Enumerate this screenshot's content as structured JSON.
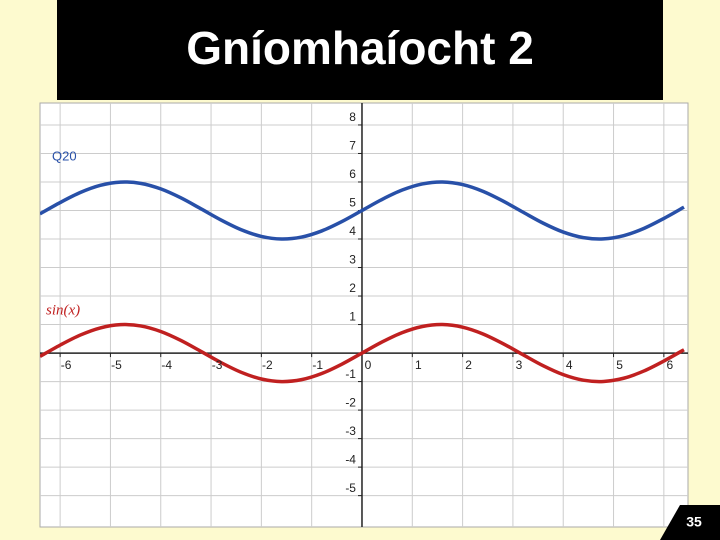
{
  "title": "Gníomhaíocht 2",
  "page_number": "35",
  "chart_data": {
    "type": "line",
    "x": [
      -6.4,
      -6.0,
      -5.6,
      -5.2,
      -4.8,
      -4.4,
      -4.0,
      -3.6,
      -3.2,
      -2.8,
      -2.4,
      -2.0,
      -1.6,
      -1.2,
      -0.8,
      -0.4,
      0,
      0.4,
      0.8,
      1.2,
      1.6,
      2.0,
      2.4,
      2.8,
      3.2,
      3.6,
      4.0,
      4.4,
      4.8,
      5.2,
      5.6,
      6.0,
      6.4
    ],
    "series": [
      {
        "name": "Q20",
        "color": "#2850a8",
        "values": [
          4.883,
          5.279,
          5.631,
          5.883,
          5.996,
          5.952,
          5.757,
          5.443,
          5.058,
          4.665,
          4.325,
          4.091,
          4.0,
          4.068,
          4.283,
          4.611,
          5,
          5.389,
          5.717,
          5.932,
          6.0,
          5.909,
          5.675,
          5.335,
          4.942,
          4.557,
          4.243,
          4.048,
          4.004,
          4.117,
          4.369,
          4.721,
          5.117
        ]
      },
      {
        "name": "sin(x)",
        "color": "#c02020",
        "values": [
          -0.117,
          0.279,
          0.631,
          0.883,
          0.996,
          0.952,
          0.757,
          0.443,
          0.058,
          -0.335,
          -0.675,
          -0.909,
          -1.0,
          -0.932,
          -0.717,
          -0.389,
          0,
          0.389,
          0.717,
          0.932,
          1.0,
          0.909,
          0.675,
          0.335,
          -0.058,
          -0.443,
          -0.757,
          -0.952,
          -0.996,
          -0.883,
          -0.631,
          -0.279,
          0.117
        ]
      }
    ],
    "xlim": [
      -6.4,
      6.48
    ],
    "ylim": [
      -6.1,
      8.77
    ],
    "xticks": [
      -6,
      -5,
      -4,
      -3,
      -2,
      -1,
      0,
      1,
      2,
      3,
      4,
      5,
      6
    ],
    "yticks": [
      -5,
      -4,
      -3,
      -2,
      -1,
      1,
      2,
      3,
      4,
      5,
      6,
      7,
      8
    ],
    "grid": true
  }
}
